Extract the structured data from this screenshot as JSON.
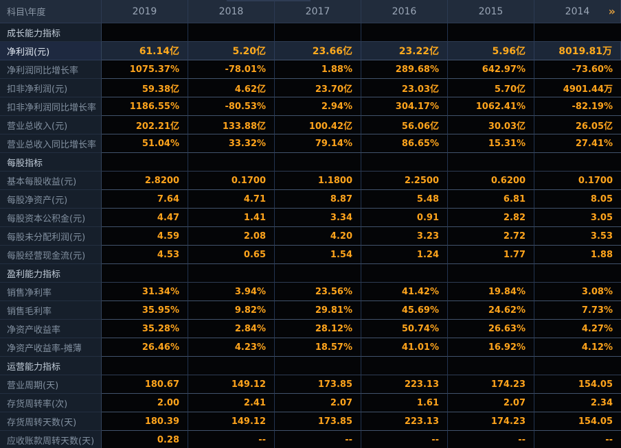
{
  "header": {
    "corner_label": "科目\\年度",
    "years": [
      "2019",
      "2018",
      "2017",
      "2016",
      "2015",
      "2014"
    ],
    "more_years_icon": "»"
  },
  "colors": {
    "header_bg": "#212c3c",
    "label_col_bg": "#161f2b",
    "data_cell_bg": "#040507",
    "highlight_row_bg": "#1c2738",
    "value_orange": "#ffa41c",
    "more_icon_orange": "#dc9b3c"
  },
  "sections": [
    {
      "title": "成长能力指标",
      "rows": [
        {
          "label": "净利润(元)",
          "highlight": true,
          "values": [
            "61.14亿",
            "5.20亿",
            "23.66亿",
            "23.22亿",
            "5.96亿",
            "8019.81万"
          ]
        },
        {
          "label": "净利润同比增长率",
          "values": [
            "1075.37%",
            "-78.01%",
            "1.88%",
            "289.68%",
            "642.97%",
            "-73.60%"
          ]
        },
        {
          "label": "扣非净利润(元)",
          "values": [
            "59.38亿",
            "4.62亿",
            "23.70亿",
            "23.03亿",
            "5.70亿",
            "4901.44万"
          ]
        },
        {
          "label": "扣非净利润同比增长率",
          "values": [
            "1186.55%",
            "-80.53%",
            "2.94%",
            "304.17%",
            "1062.41%",
            "-82.19%"
          ]
        },
        {
          "label": "营业总收入(元)",
          "values": [
            "202.21亿",
            "133.88亿",
            "100.42亿",
            "56.06亿",
            "30.03亿",
            "26.05亿"
          ]
        },
        {
          "label": "营业总收入同比增长率",
          "values": [
            "51.04%",
            "33.32%",
            "79.14%",
            "86.65%",
            "15.31%",
            "27.41%"
          ]
        }
      ]
    },
    {
      "title": "每股指标",
      "rows": [
        {
          "label": "基本每股收益(元)",
          "values": [
            "2.8200",
            "0.1700",
            "1.1800",
            "2.2500",
            "0.6200",
            "0.1700"
          ]
        },
        {
          "label": "每股净资产(元)",
          "values": [
            "7.64",
            "4.71",
            "8.87",
            "5.48",
            "6.81",
            "8.05"
          ]
        },
        {
          "label": "每股资本公积金(元)",
          "values": [
            "4.47",
            "1.41",
            "3.34",
            "0.91",
            "2.82",
            "3.05"
          ]
        },
        {
          "label": "每股未分配利润(元)",
          "values": [
            "4.59",
            "2.08",
            "4.20",
            "3.23",
            "2.72",
            "3.53"
          ]
        },
        {
          "label": "每股经营现金流(元)",
          "values": [
            "4.53",
            "0.65",
            "1.54",
            "1.24",
            "1.77",
            "1.88"
          ]
        }
      ]
    },
    {
      "title": "盈利能力指标",
      "rows": [
        {
          "label": "销售净利率",
          "values": [
            "31.34%",
            "3.94%",
            "23.56%",
            "41.42%",
            "19.84%",
            "3.08%"
          ]
        },
        {
          "label": "销售毛利率",
          "values": [
            "35.95%",
            "9.82%",
            "29.81%",
            "45.69%",
            "24.62%",
            "7.73%"
          ]
        },
        {
          "label": "净资产收益率",
          "values": [
            "35.28%",
            "2.84%",
            "28.12%",
            "50.74%",
            "26.63%",
            "4.27%"
          ]
        },
        {
          "label": "净资产收益率-摊薄",
          "values": [
            "26.46%",
            "4.23%",
            "18.57%",
            "41.01%",
            "16.92%",
            "4.12%"
          ]
        }
      ]
    },
    {
      "title": "运营能力指标",
      "rows": [
        {
          "label": "营业周期(天)",
          "values": [
            "180.67",
            "149.12",
            "173.85",
            "223.13",
            "174.23",
            "154.05"
          ]
        },
        {
          "label": "存货周转率(次)",
          "values": [
            "2.00",
            "2.41",
            "2.07",
            "1.61",
            "2.07",
            "2.34"
          ]
        },
        {
          "label": "存货周转天数(天)",
          "values": [
            "180.39",
            "149.12",
            "173.85",
            "223.13",
            "174.23",
            "154.05"
          ]
        },
        {
          "label": "应收账款周转天数(天)",
          "values": [
            "0.28",
            "--",
            "--",
            "--",
            "--",
            "--"
          ]
        }
      ]
    }
  ]
}
